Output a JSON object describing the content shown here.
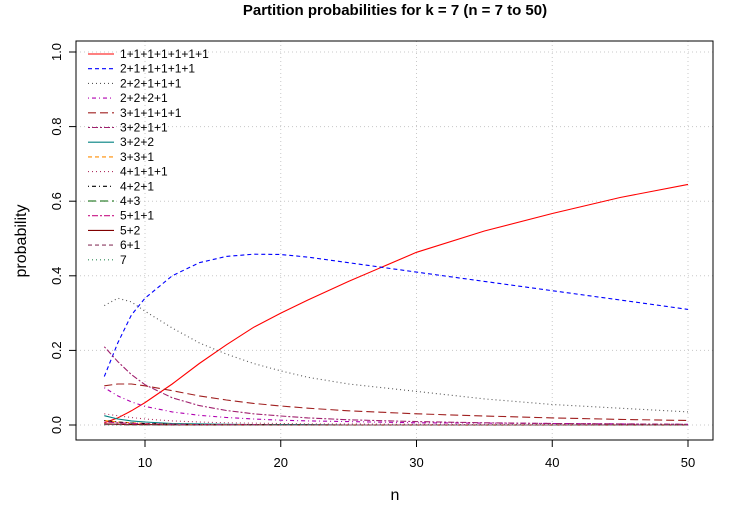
{
  "chart_data": {
    "type": "line",
    "title": "Partition probabilities for k = 7 (n = 7 to 50)",
    "xlabel": "n",
    "ylabel": "probability",
    "xlim": [
      7,
      50
    ],
    "ylim": [
      0,
      1
    ],
    "x_ticks": [
      10,
      20,
      30,
      40,
      50
    ],
    "y_ticks": [
      0,
      0.2,
      0.4,
      0.6,
      0.8,
      1
    ],
    "x_tick_labels": [
      "10",
      "20",
      "30",
      "40",
      "50"
    ],
    "y_tick_labels": [
      "0.0",
      "0.2",
      "0.4",
      "0.6",
      "0.8",
      "1.0"
    ],
    "grid": true,
    "legend_position": "top-left",
    "x": [
      7,
      8,
      9,
      10,
      12,
      14,
      16,
      18,
      20,
      22,
      25,
      30,
      35,
      40,
      45,
      50
    ],
    "series": [
      {
        "name": "1+1+1+1+1+1+1",
        "color": "#ff0000",
        "dash": "solid",
        "values": [
          0.006,
          0.019,
          0.038,
          0.06,
          0.11,
          0.165,
          0.215,
          0.262,
          0.3,
          0.335,
          0.385,
          0.463,
          0.52,
          0.567,
          0.61,
          0.645
        ]
      },
      {
        "name": "2+1+1+1+1+1",
        "color": "#0000ff",
        "dash": "dashed",
        "values": [
          0.13,
          0.22,
          0.295,
          0.34,
          0.4,
          0.435,
          0.452,
          0.458,
          0.457,
          0.45,
          0.435,
          0.41,
          0.385,
          0.36,
          0.335,
          0.31
        ]
      },
      {
        "name": "2+2+1+1+1",
        "color": "#555555",
        "dash": "dotted",
        "values": [
          0.32,
          0.34,
          0.33,
          0.305,
          0.26,
          0.22,
          0.19,
          0.165,
          0.145,
          0.128,
          0.11,
          0.09,
          0.07,
          0.055,
          0.045,
          0.035
        ]
      },
      {
        "name": "2+2+2+1",
        "color": "#b000b0",
        "dash": "dotdash",
        "values": [
          0.1,
          0.078,
          0.062,
          0.05,
          0.035,
          0.026,
          0.02,
          0.016,
          0.013,
          0.011,
          0.009,
          0.006,
          0.005,
          0.004,
          0.003,
          0.002
        ]
      },
      {
        "name": "3+1+1+1+1",
        "color": "#a02020",
        "dash": "longdash",
        "values": [
          0.105,
          0.11,
          0.11,
          0.105,
          0.092,
          0.078,
          0.067,
          0.058,
          0.051,
          0.045,
          0.038,
          0.03,
          0.024,
          0.019,
          0.015,
          0.012
        ]
      },
      {
        "name": "3+2+1+1",
        "color": "#a0206e",
        "dash": "twodash",
        "values": [
          0.21,
          0.17,
          0.135,
          0.108,
          0.073,
          0.052,
          0.039,
          0.03,
          0.024,
          0.019,
          0.014,
          0.009,
          0.006,
          0.004,
          0.003,
          0.002
        ]
      },
      {
        "name": "3+2+2",
        "color": "#008080",
        "dash": "solid",
        "values": [
          0.025,
          0.016,
          0.011,
          0.008,
          0.004,
          0.003,
          0.002,
          0.001,
          0.001,
          0.001,
          0.0,
          0.0,
          0.0,
          0.0,
          0.0,
          0.0
        ]
      },
      {
        "name": "3+3+1",
        "color": "#ff8c00",
        "dash": "dashed",
        "values": [
          0.012,
          0.008,
          0.006,
          0.004,
          0.002,
          0.001,
          0.001,
          0.001,
          0.0,
          0.0,
          0.0,
          0.0,
          0.0,
          0.0,
          0.0,
          0.0
        ]
      },
      {
        "name": "4+1+1+1",
        "color": "#b03060",
        "dash": "dotted",
        "values": [
          0.03,
          0.025,
          0.02,
          0.016,
          0.011,
          0.008,
          0.006,
          0.005,
          0.004,
          0.003,
          0.003,
          0.002,
          0.001,
          0.001,
          0.001,
          0.001
        ]
      },
      {
        "name": "4+2+1",
        "color": "#000000",
        "dash": "dotdash",
        "values": [
          0.012,
          0.008,
          0.005,
          0.004,
          0.002,
          0.001,
          0.001,
          0.001,
          0.0,
          0.0,
          0.0,
          0.0,
          0.0,
          0.0,
          0.0,
          0.0
        ]
      },
      {
        "name": "4+3",
        "color": "#006400",
        "dash": "longdash",
        "values": [
          0.003,
          0.002,
          0.001,
          0.001,
          0.0,
          0.0,
          0.0,
          0.0,
          0.0,
          0.0,
          0.0,
          0.0,
          0.0,
          0.0,
          0.0,
          0.0
        ]
      },
      {
        "name": "5+1+1",
        "color": "#c71585",
        "dash": "twodash",
        "values": [
          0.008,
          0.006,
          0.004,
          0.003,
          0.002,
          0.001,
          0.001,
          0.001,
          0.0,
          0.0,
          0.0,
          0.0,
          0.0,
          0.0,
          0.0,
          0.0
        ]
      },
      {
        "name": "5+2",
        "color": "#800000",
        "dash": "solid",
        "values": [
          0.003,
          0.002,
          0.001,
          0.001,
          0.0,
          0.0,
          0.0,
          0.0,
          0.0,
          0.0,
          0.0,
          0.0,
          0.0,
          0.0,
          0.0,
          0.0
        ]
      },
      {
        "name": "6+1",
        "color": "#8b3a62",
        "dash": "dashed",
        "values": [
          0.001,
          0.001,
          0.0,
          0.0,
          0.0,
          0.0,
          0.0,
          0.0,
          0.0,
          0.0,
          0.0,
          0.0,
          0.0,
          0.0,
          0.0,
          0.0
        ]
      },
      {
        "name": "7",
        "color": "#2e8b57",
        "dash": "dotted",
        "values": [
          0.0,
          0.0,
          0.0,
          0.0,
          0.0,
          0.0,
          0.0,
          0.0,
          0.0,
          0.0,
          0.0,
          0.0,
          0.0,
          0.0,
          0.0,
          0.0
        ]
      }
    ]
  }
}
